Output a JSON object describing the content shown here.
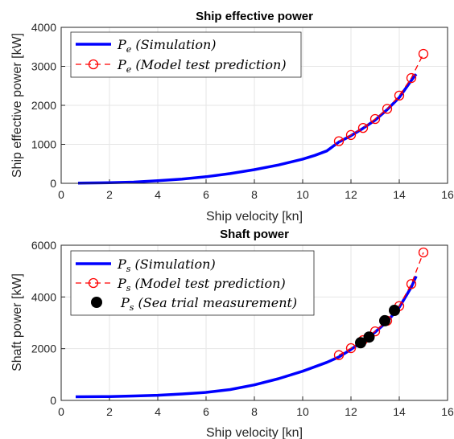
{
  "chart_data": [
    {
      "type": "line",
      "title": "Ship effective power",
      "xlabel": "Ship velocity [kn]",
      "ylabel": "Ship effective power [kW]",
      "xlim": [
        0,
        16
      ],
      "ylim": [
        0,
        4000
      ],
      "xticks": [
        "0",
        "2",
        "4",
        "6",
        "8",
        "10",
        "12",
        "14",
        "16"
      ],
      "yticks": [
        "0",
        "1000",
        "2000",
        "3000",
        "4000"
      ],
      "grid": true,
      "legend_position": "top-left",
      "series": [
        {
          "name": "P",
          "name_sub": "e",
          "name_rest": " (Simulation)",
          "style": "solid-line",
          "color": "#0000ff",
          "x": [
            0.7,
            2,
            3,
            4,
            5,
            6,
            7,
            8,
            9,
            10,
            10.5,
            11,
            11.5,
            12,
            12.5,
            13,
            13.5,
            14,
            14.5,
            14.7
          ],
          "y": [
            5,
            15,
            30,
            65,
            110,
            170,
            250,
            350,
            470,
            620,
            715,
            830,
            1060,
            1220,
            1410,
            1620,
            1890,
            2200,
            2640,
            2800
          ]
        },
        {
          "name": "P",
          "name_sub": "e",
          "name_rest": " (Model test prediction)",
          "style": "dashed-circle",
          "color": "#ff0000",
          "x": [
            11.5,
            12,
            12.5,
            13,
            13.5,
            14,
            14.5,
            15
          ],
          "y": [
            1080,
            1240,
            1420,
            1650,
            1910,
            2250,
            2700,
            3320
          ]
        }
      ]
    },
    {
      "type": "line",
      "title": "Shaft power",
      "xlabel": "Ship velocity [kn]",
      "ylabel": "Shaft power [kW]",
      "xlim": [
        0,
        16
      ],
      "ylim": [
        0,
        6000
      ],
      "xticks": [
        "0",
        "2",
        "4",
        "6",
        "8",
        "10",
        "12",
        "14",
        "16"
      ],
      "yticks": [
        "0",
        "2000",
        "4000",
        "6000"
      ],
      "grid": true,
      "legend_position": "top-left",
      "series": [
        {
          "name": "P",
          "name_sub": "s",
          "name_rest": " (Simulation)",
          "style": "solid-line",
          "color": "#0000ff",
          "x": [
            0.6,
            2,
            3,
            4,
            5,
            6,
            7,
            8,
            9,
            10,
            11,
            11.5,
            12,
            12.5,
            13,
            13.5,
            14,
            14.5,
            14.7
          ],
          "y": [
            140,
            150,
            170,
            200,
            250,
            310,
            420,
            600,
            840,
            1130,
            1470,
            1680,
            1970,
            2290,
            2640,
            3050,
            3600,
            4380,
            4800
          ]
        },
        {
          "name": "P",
          "name_sub": "s",
          "name_rest": " (Model test prediction)",
          "style": "dashed-circle",
          "color": "#ff0000",
          "x": [
            11.5,
            12,
            12.5,
            13,
            13.5,
            14,
            14.5,
            15
          ],
          "y": [
            1750,
            2020,
            2330,
            2670,
            3080,
            3650,
            4500,
            5720
          ]
        },
        {
          "name": "P",
          "name_sub": "s",
          "name_rest": " (Sea trial measurement)",
          "style": "filled-dot",
          "color": "#000000",
          "x": [
            12.4,
            12.75,
            13.4,
            13.8
          ],
          "y": [
            2230,
            2450,
            3080,
            3480
          ]
        }
      ]
    }
  ]
}
